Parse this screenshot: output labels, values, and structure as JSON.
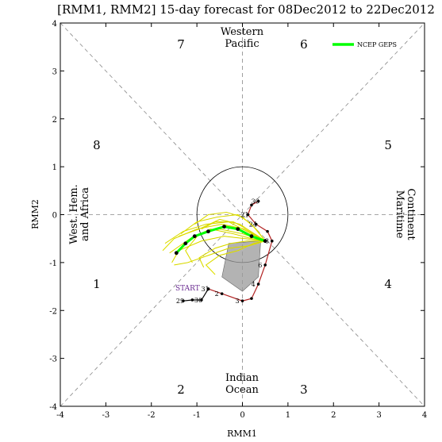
{
  "chart_data": {
    "type": "line",
    "title": "[RMM1, RMM2] 15-day forecast for 08Dec2012 to 22Dec2012",
    "xlabel": "RMM1",
    "ylabel": "RMM2",
    "xlim": [
      -4,
      4
    ],
    "ylim": [
      -4,
      4
    ],
    "xticks": [
      "-4",
      "-3",
      "-2",
      "-1",
      "0",
      "1",
      "2",
      "3",
      "4"
    ],
    "yticks": [
      "-4",
      "-3",
      "-2",
      "-1",
      "0",
      "1",
      "2",
      "3",
      "4"
    ],
    "grid": false,
    "legend_position": "top-right",
    "phases": [
      {
        "label": "1",
        "x": -3.2,
        "y": -1.45
      },
      {
        "label": "2",
        "x": -1.35,
        "y": -3.65
      },
      {
        "label": "3",
        "x": 1.35,
        "y": -3.65
      },
      {
        "label": "4",
        "x": 3.2,
        "y": -1.45
      },
      {
        "label": "5",
        "x": 3.2,
        "y": 1.45
      },
      {
        "label": "6",
        "x": 1.35,
        "y": 3.55
      },
      {
        "label": "7",
        "x": -1.35,
        "y": 3.55
      },
      {
        "label": "8",
        "x": -3.2,
        "y": 1.45
      }
    ],
    "regions": {
      "top": [
        "Western",
        "Pacific"
      ],
      "bottom": [
        "Indian",
        "Ocean"
      ],
      "left": [
        "West. Hem.",
        "and Africa"
      ],
      "right": [
        "Maritime",
        "Continent"
      ]
    },
    "start_label": "START",
    "observed": {
      "color": "#b22222",
      "points": [
        {
          "x": 0.35,
          "y": 0.28,
          "label": "30"
        },
        {
          "x": 0.2,
          "y": 0.2,
          "label": ""
        },
        {
          "x": 0.12,
          "y": 0.0,
          "label": "21"
        },
        {
          "x": 0.3,
          "y": -0.2,
          "label": "24"
        },
        {
          "x": 0.55,
          "y": -0.35,
          "label": ""
        },
        {
          "x": 0.65,
          "y": -0.55,
          "label": "8"
        },
        {
          "x": 0.5,
          "y": -1.05,
          "label": "6"
        },
        {
          "x": 0.35,
          "y": -1.45,
          "label": "4"
        },
        {
          "x": 0.2,
          "y": -1.75,
          "label": ""
        },
        {
          "x": 0.0,
          "y": -1.8,
          "label": "3"
        },
        {
          "x": -0.45,
          "y": -1.65,
          "label": "2"
        },
        {
          "x": -0.75,
          "y": -1.55,
          "label": "31"
        }
      ]
    },
    "analysis": {
      "color": "#000000",
      "points": [
        {
          "x": -0.75,
          "y": -1.55,
          "label": ""
        },
        {
          "x": -0.9,
          "y": -1.78,
          "label": "30"
        },
        {
          "x": -1.1,
          "y": -1.78,
          "label": ""
        },
        {
          "x": -1.3,
          "y": -1.8,
          "label": "29"
        }
      ]
    },
    "series": [
      {
        "name": "NCEP GEPS",
        "color": "#00ff00",
        "points": [
          {
            "x": 0.5,
            "y": -0.55
          },
          {
            "x": 0.2,
            "y": -0.45
          },
          {
            "x": -0.1,
            "y": -0.3
          },
          {
            "x": -0.4,
            "y": -0.25
          },
          {
            "x": -0.75,
            "y": -0.35
          },
          {
            "x": -1.05,
            "y": -0.45
          },
          {
            "x": -1.25,
            "y": -0.6
          },
          {
            "x": -1.45,
            "y": -0.8
          }
        ]
      }
    ],
    "ensemble": {
      "color": "#f0f000",
      "members": [
        [
          [
            0.5,
            -0.55
          ],
          [
            0.1,
            -0.35
          ],
          [
            -0.3,
            -0.15
          ],
          [
            -0.8,
            -0.2
          ],
          [
            -1.3,
            -0.35
          ],
          [
            -1.7,
            -0.6
          ]
        ],
        [
          [
            0.5,
            -0.55
          ],
          [
            0.05,
            -0.5
          ],
          [
            -0.4,
            -0.45
          ],
          [
            -0.9,
            -0.55
          ],
          [
            -1.4,
            -0.75
          ],
          [
            -1.55,
            -1.0
          ]
        ],
        [
          [
            0.5,
            -0.55
          ],
          [
            0.2,
            -0.2
          ],
          [
            -0.1,
            0.0
          ],
          [
            -0.55,
            -0.05
          ],
          [
            -1.0,
            -0.15
          ],
          [
            -1.35,
            -0.4
          ]
        ],
        [
          [
            0.5,
            -0.55
          ],
          [
            0.15,
            -0.65
          ],
          [
            -0.3,
            -0.7
          ],
          [
            -0.75,
            -0.85
          ],
          [
            -1.2,
            -1.0
          ],
          [
            -1.5,
            -1.05
          ]
        ],
        [
          [
            0.5,
            -0.55
          ],
          [
            0.25,
            -0.4
          ],
          [
            -0.05,
            -0.2
          ],
          [
            -0.5,
            -0.1
          ],
          [
            -0.95,
            -0.3
          ],
          [
            -1.4,
            -0.45
          ]
        ],
        [
          [
            0.5,
            -0.55
          ],
          [
            0.0,
            -0.4
          ],
          [
            -0.5,
            -0.3
          ],
          [
            -0.95,
            -0.4
          ],
          [
            -1.25,
            -0.75
          ],
          [
            -1.1,
            -1.0
          ]
        ],
        [
          [
            0.5,
            -0.55
          ],
          [
            0.3,
            -0.3
          ],
          [
            0.0,
            -0.05
          ],
          [
            -0.35,
            0.05
          ],
          [
            -0.75,
            0.0
          ],
          [
            -1.05,
            -0.2
          ]
        ],
        [
          [
            0.5,
            -0.55
          ],
          [
            0.1,
            -0.55
          ],
          [
            -0.25,
            -0.6
          ],
          [
            -0.6,
            -0.7
          ],
          [
            -0.95,
            -0.9
          ],
          [
            -0.85,
            -1.1
          ]
        ],
        [
          [
            0.5,
            -0.55
          ],
          [
            0.2,
            -0.5
          ],
          [
            -0.2,
            -0.4
          ],
          [
            -0.7,
            -0.3
          ],
          [
            -1.15,
            -0.5
          ],
          [
            -1.6,
            -0.8
          ]
        ],
        [
          [
            0.5,
            -0.55
          ],
          [
            0.35,
            -0.45
          ],
          [
            0.1,
            -0.3
          ],
          [
            -0.2,
            -0.15
          ],
          [
            -0.6,
            -0.15
          ],
          [
            -0.9,
            -0.3
          ]
        ],
        [
          [
            0.5,
            -0.55
          ],
          [
            0.05,
            -0.3
          ],
          [
            -0.45,
            -0.2
          ],
          [
            -1.0,
            -0.3
          ],
          [
            -1.5,
            -0.5
          ],
          [
            -1.75,
            -0.75
          ]
        ],
        [
          [
            0.5,
            -0.55
          ],
          [
            0.25,
            -0.6
          ],
          [
            -0.1,
            -0.75
          ],
          [
            -0.5,
            -0.85
          ],
          [
            -0.8,
            -1.05
          ],
          [
            -0.6,
            -1.25
          ]
        ]
      ]
    },
    "spread_polygon": [
      {
        "x": -0.3,
        "y": -0.6
      },
      {
        "x": 0.4,
        "y": -0.55
      },
      {
        "x": 0.35,
        "y": -1.3
      },
      {
        "x": 0.0,
        "y": -1.6
      },
      {
        "x": -0.45,
        "y": -1.3
      }
    ]
  }
}
